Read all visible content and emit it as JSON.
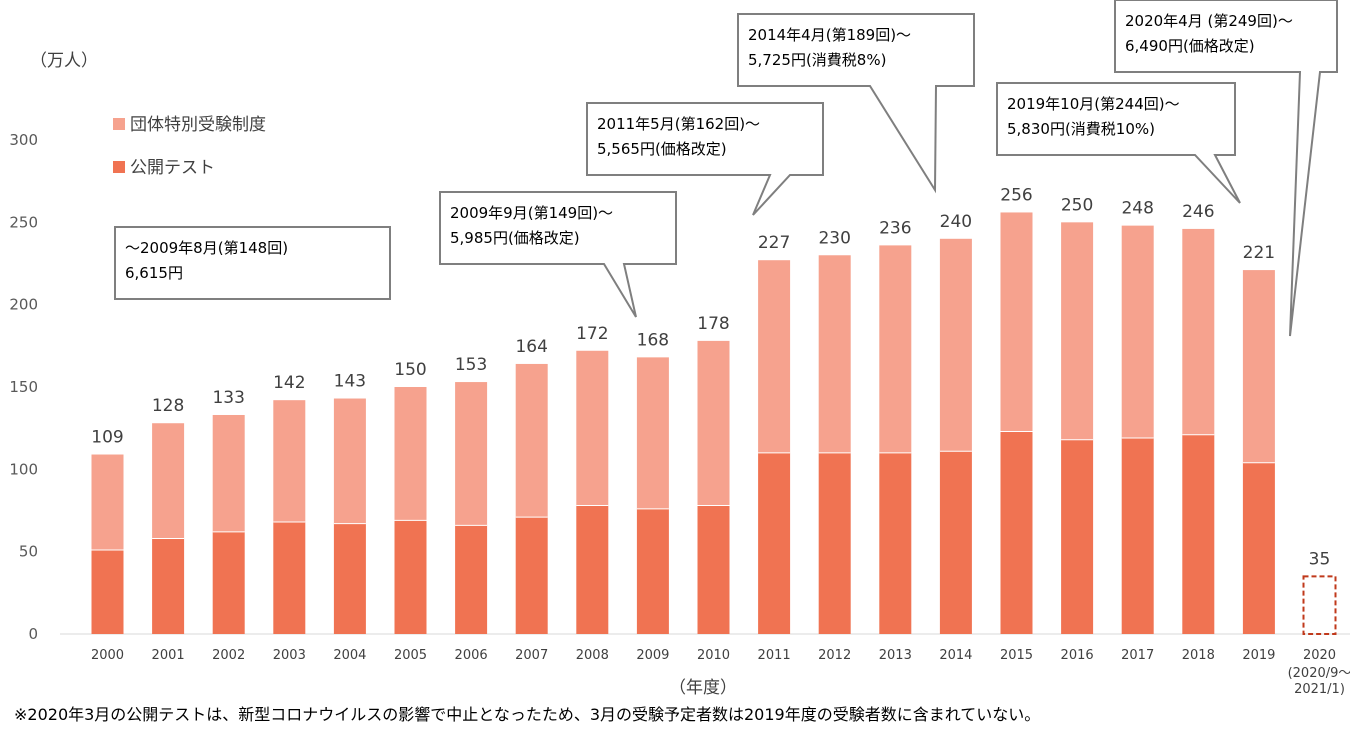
{
  "chart_data": {
    "type": "bar",
    "stacked": true,
    "unit_label": "（万人）",
    "xlabel": "（年度）",
    "ylim": [
      0,
      300
    ],
    "yticks": [
      0,
      50,
      100,
      150,
      200,
      250,
      300
    ],
    "categories": [
      "2000",
      "2001",
      "2002",
      "2003",
      "2004",
      "2005",
      "2006",
      "2007",
      "2008",
      "2009",
      "2010",
      "2011",
      "2012",
      "2013",
      "2014",
      "2015",
      "2016",
      "2017",
      "2018",
      "2019",
      "2020"
    ],
    "category_sublabels": {
      "2020": [
        "(2020/9～",
        "2021/1)"
      ]
    },
    "series": [
      {
        "name": "公開テスト",
        "color": "#f07352",
        "values": [
          51,
          58,
          62,
          68,
          67,
          69,
          66,
          71,
          78,
          76,
          78,
          110,
          110,
          110,
          111,
          123,
          118,
          119,
          121,
          104,
          35
        ]
      },
      {
        "name": "団体特別受験制度",
        "color": "#f6a28e",
        "values": [
          58,
          70,
          71,
          74,
          76,
          81,
          87,
          93,
          94,
          92,
          100,
          117,
          120,
          126,
          129,
          133,
          132,
          129,
          125,
          117,
          0
        ]
      }
    ],
    "totals": [
      "109",
      "128",
      "133",
      "142",
      "143",
      "150",
      "153",
      "164",
      "172",
      "168",
      "178",
      "227",
      "230",
      "236",
      "240",
      "256",
      "250",
      "248",
      "246",
      "221",
      "35"
    ],
    "partial_year": {
      "category": "2020",
      "style": "dashed outline",
      "color": "#c0391b"
    },
    "legend": {
      "placement": "top-left",
      "order": [
        "団体特別受験制度",
        "公開テスト"
      ]
    },
    "grid": false,
    "annotations": [
      {
        "lines": [
          "～2009年8月(第148回)",
          "6,615円"
        ]
      },
      {
        "lines": [
          "2009年9月(第149回)～",
          "5,985円(価格改定)"
        ],
        "target": "2009"
      },
      {
        "lines": [
          "2011年5月(第162回)～",
          "5,565円(価格改定)"
        ],
        "target": "2011"
      },
      {
        "lines": [
          "2014年4月(第189回)～",
          "5,725円(消費税8%)"
        ],
        "target": "2014"
      },
      {
        "lines": [
          "2019年10月(第244回)～",
          "5,830円(消費税10%)"
        ],
        "target": "2019"
      },
      {
        "lines": [
          "2020年4月 (第249回)～",
          "6,490円(価格改定)"
        ],
        "target": "2020"
      }
    ],
    "footnote": "※2020年3月の公開テストは、新型コロナウイルスの影響で中止となったため、3月の受験予定者数は2019年度の受験者数に含まれていない。"
  }
}
